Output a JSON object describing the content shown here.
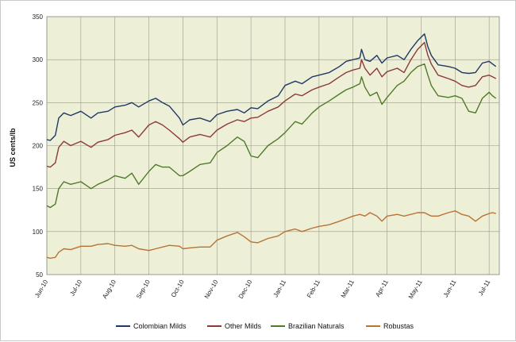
{
  "chart_data": {
    "type": "line",
    "title": "",
    "xlabel": "",
    "ylabel": "US cents/lb",
    "ylim": [
      50,
      350
    ],
    "yticks": [
      50,
      100,
      150,
      200,
      250,
      300,
      350
    ],
    "x_ticks": [
      "Jun-10",
      "Jul-10",
      "Aug-10",
      "Sep-10",
      "Oct-10",
      "Nov-10",
      "Dec-10",
      "Jan-11",
      "Feb-11",
      "Mar-11",
      "Apr-11",
      "May-11",
      "Jun-11",
      "Jul-11"
    ],
    "grid": true,
    "legend_position": "bottom",
    "plot_background": "#eeefd7",
    "series": [
      {
        "name": "Colombian Milds",
        "color": "#1f3864",
        "values": [
          [
            0,
            207
          ],
          [
            0.1,
            206
          ],
          [
            0.25,
            212
          ],
          [
            0.35,
            232
          ],
          [
            0.5,
            238
          ],
          [
            0.7,
            235
          ],
          [
            1.0,
            240
          ],
          [
            1.3,
            232
          ],
          [
            1.5,
            238
          ],
          [
            1.8,
            240
          ],
          [
            2.0,
            245
          ],
          [
            2.3,
            247
          ],
          [
            2.5,
            250
          ],
          [
            2.7,
            245
          ],
          [
            3.0,
            252
          ],
          [
            3.2,
            255
          ],
          [
            3.4,
            250
          ],
          [
            3.6,
            246
          ],
          [
            3.9,
            232
          ],
          [
            4.0,
            224
          ],
          [
            4.2,
            230
          ],
          [
            4.5,
            232
          ],
          [
            4.8,
            228
          ],
          [
            5.0,
            236
          ],
          [
            5.3,
            240
          ],
          [
            5.6,
            242
          ],
          [
            5.8,
            238
          ],
          [
            6.0,
            244
          ],
          [
            6.2,
            243
          ],
          [
            6.5,
            252
          ],
          [
            6.8,
            258
          ],
          [
            7.0,
            270
          ],
          [
            7.3,
            275
          ],
          [
            7.5,
            272
          ],
          [
            7.8,
            280
          ],
          [
            8.0,
            282
          ],
          [
            8.3,
            285
          ],
          [
            8.6,
            292
          ],
          [
            8.8,
            298
          ],
          [
            9.0,
            300
          ],
          [
            9.2,
            302
          ],
          [
            9.25,
            312
          ],
          [
            9.35,
            300
          ],
          [
            9.5,
            298
          ],
          [
            9.7,
            305
          ],
          [
            9.85,
            296
          ],
          [
            10.0,
            302
          ],
          [
            10.3,
            305
          ],
          [
            10.5,
            300
          ],
          [
            10.7,
            312
          ],
          [
            10.9,
            322
          ],
          [
            11.1,
            330
          ],
          [
            11.2,
            315
          ],
          [
            11.3,
            305
          ],
          [
            11.5,
            294
          ],
          [
            11.8,
            292
          ],
          [
            12.0,
            290
          ],
          [
            12.2,
            285
          ],
          [
            12.4,
            284
          ],
          [
            12.6,
            285
          ],
          [
            12.8,
            296
          ],
          [
            13.0,
            298
          ],
          [
            13.1,
            295
          ],
          [
            13.2,
            292
          ]
        ]
      },
      {
        "name": "Other Milds",
        "color": "#8b3a3a",
        "values": [
          [
            0,
            176
          ],
          [
            0.1,
            175
          ],
          [
            0.25,
            180
          ],
          [
            0.35,
            198
          ],
          [
            0.5,
            205
          ],
          [
            0.7,
            200
          ],
          [
            1.0,
            205
          ],
          [
            1.3,
            198
          ],
          [
            1.5,
            204
          ],
          [
            1.8,
            207
          ],
          [
            2.0,
            212
          ],
          [
            2.3,
            215
          ],
          [
            2.5,
            218
          ],
          [
            2.7,
            210
          ],
          [
            3.0,
            224
          ],
          [
            3.2,
            228
          ],
          [
            3.4,
            224
          ],
          [
            3.6,
            218
          ],
          [
            3.9,
            208
          ],
          [
            4.0,
            204
          ],
          [
            4.2,
            210
          ],
          [
            4.5,
            213
          ],
          [
            4.8,
            210
          ],
          [
            5.0,
            218
          ],
          [
            5.3,
            225
          ],
          [
            5.6,
            230
          ],
          [
            5.8,
            228
          ],
          [
            6.0,
            232
          ],
          [
            6.2,
            233
          ],
          [
            6.5,
            240
          ],
          [
            6.8,
            245
          ],
          [
            7.0,
            252
          ],
          [
            7.3,
            260
          ],
          [
            7.5,
            258
          ],
          [
            7.8,
            265
          ],
          [
            8.0,
            268
          ],
          [
            8.3,
            272
          ],
          [
            8.6,
            280
          ],
          [
            8.8,
            285
          ],
          [
            9.0,
            288
          ],
          [
            9.2,
            290
          ],
          [
            9.25,
            300
          ],
          [
            9.35,
            290
          ],
          [
            9.5,
            282
          ],
          [
            9.7,
            290
          ],
          [
            9.85,
            280
          ],
          [
            10.0,
            286
          ],
          [
            10.3,
            290
          ],
          [
            10.5,
            285
          ],
          [
            10.7,
            300
          ],
          [
            10.9,
            312
          ],
          [
            11.1,
            320
          ],
          [
            11.2,
            305
          ],
          [
            11.3,
            295
          ],
          [
            11.5,
            282
          ],
          [
            11.8,
            278
          ],
          [
            12.0,
            275
          ],
          [
            12.2,
            270
          ],
          [
            12.4,
            268
          ],
          [
            12.6,
            270
          ],
          [
            12.8,
            280
          ],
          [
            13.0,
            282
          ],
          [
            13.1,
            280
          ],
          [
            13.2,
            278
          ]
        ]
      },
      {
        "name": "Brazilian Naturals",
        "color": "#4f7a28",
        "values": [
          [
            0,
            130
          ],
          [
            0.1,
            128
          ],
          [
            0.25,
            132
          ],
          [
            0.35,
            150
          ],
          [
            0.5,
            158
          ],
          [
            0.7,
            155
          ],
          [
            1.0,
            158
          ],
          [
            1.3,
            150
          ],
          [
            1.5,
            155
          ],
          [
            1.8,
            160
          ],
          [
            2.0,
            165
          ],
          [
            2.3,
            162
          ],
          [
            2.5,
            168
          ],
          [
            2.7,
            155
          ],
          [
            3.0,
            170
          ],
          [
            3.2,
            178
          ],
          [
            3.4,
            175
          ],
          [
            3.6,
            175
          ],
          [
            3.9,
            165
          ],
          [
            4.0,
            165
          ],
          [
            4.2,
            170
          ],
          [
            4.5,
            178
          ],
          [
            4.8,
            180
          ],
          [
            5.0,
            192
          ],
          [
            5.3,
            200
          ],
          [
            5.6,
            210
          ],
          [
            5.8,
            205
          ],
          [
            6.0,
            188
          ],
          [
            6.2,
            186
          ],
          [
            6.5,
            200
          ],
          [
            6.8,
            208
          ],
          [
            7.0,
            215
          ],
          [
            7.3,
            228
          ],
          [
            7.5,
            225
          ],
          [
            7.8,
            238
          ],
          [
            8.0,
            245
          ],
          [
            8.3,
            252
          ],
          [
            8.6,
            260
          ],
          [
            8.8,
            265
          ],
          [
            9.0,
            268
          ],
          [
            9.2,
            272
          ],
          [
            9.25,
            280
          ],
          [
            9.35,
            268
          ],
          [
            9.5,
            258
          ],
          [
            9.7,
            262
          ],
          [
            9.85,
            248
          ],
          [
            10.0,
            256
          ],
          [
            10.3,
            270
          ],
          [
            10.5,
            275
          ],
          [
            10.7,
            285
          ],
          [
            10.9,
            292
          ],
          [
            11.1,
            295
          ],
          [
            11.2,
            282
          ],
          [
            11.3,
            270
          ],
          [
            11.5,
            258
          ],
          [
            11.8,
            256
          ],
          [
            12.0,
            258
          ],
          [
            12.2,
            255
          ],
          [
            12.4,
            240
          ],
          [
            12.6,
            238
          ],
          [
            12.8,
            255
          ],
          [
            13.0,
            262
          ],
          [
            13.1,
            258
          ],
          [
            13.2,
            255
          ]
        ]
      },
      {
        "name": "Robustas",
        "color": "#b87333",
        "values": [
          [
            0,
            70
          ],
          [
            0.1,
            69
          ],
          [
            0.25,
            70
          ],
          [
            0.35,
            76
          ],
          [
            0.5,
            80
          ],
          [
            0.7,
            79
          ],
          [
            1.0,
            83
          ],
          [
            1.3,
            83
          ],
          [
            1.5,
            85
          ],
          [
            1.8,
            86
          ],
          [
            2.0,
            84
          ],
          [
            2.3,
            83
          ],
          [
            2.5,
            84
          ],
          [
            2.7,
            80
          ],
          [
            3.0,
            78
          ],
          [
            3.2,
            80
          ],
          [
            3.4,
            82
          ],
          [
            3.6,
            84
          ],
          [
            3.9,
            83
          ],
          [
            4.0,
            80
          ],
          [
            4.2,
            81
          ],
          [
            4.5,
            82
          ],
          [
            4.8,
            82
          ],
          [
            5.0,
            90
          ],
          [
            5.3,
            95
          ],
          [
            5.6,
            99
          ],
          [
            5.8,
            94
          ],
          [
            6.0,
            88
          ],
          [
            6.2,
            87
          ],
          [
            6.5,
            92
          ],
          [
            6.8,
            95
          ],
          [
            7.0,
            100
          ],
          [
            7.3,
            103
          ],
          [
            7.5,
            100
          ],
          [
            7.8,
            104
          ],
          [
            8.0,
            106
          ],
          [
            8.3,
            108
          ],
          [
            8.6,
            112
          ],
          [
            8.8,
            115
          ],
          [
            9.0,
            118
          ],
          [
            9.2,
            120
          ],
          [
            9.35,
            118
          ],
          [
            9.5,
            122
          ],
          [
            9.7,
            118
          ],
          [
            9.85,
            112
          ],
          [
            10.0,
            118
          ],
          [
            10.3,
            120
          ],
          [
            10.5,
            118
          ],
          [
            10.7,
            120
          ],
          [
            10.9,
            122
          ],
          [
            11.1,
            122
          ],
          [
            11.2,
            120
          ],
          [
            11.3,
            118
          ],
          [
            11.5,
            118
          ],
          [
            11.8,
            122
          ],
          [
            12.0,
            124
          ],
          [
            12.2,
            120
          ],
          [
            12.4,
            118
          ],
          [
            12.6,
            112
          ],
          [
            12.8,
            118
          ],
          [
            13.0,
            121
          ],
          [
            13.1,
            122
          ],
          [
            13.2,
            121
          ]
        ]
      }
    ]
  }
}
